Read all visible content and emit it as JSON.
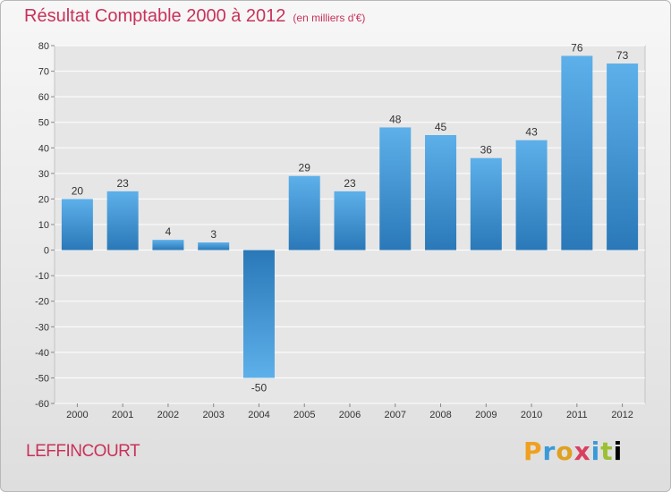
{
  "chart_data": {
    "type": "bar",
    "title": "Résultat Comptable 2000 à 2012",
    "subtitle": "(en milliers d'€)",
    "categories": [
      "2000",
      "2001",
      "2002",
      "2003",
      "2004",
      "2005",
      "2006",
      "2007",
      "2008",
      "2009",
      "2010",
      "2011",
      "2012"
    ],
    "values": [
      20,
      23,
      4,
      3,
      -50,
      29,
      23,
      48,
      45,
      36,
      43,
      76,
      73
    ],
    "ylim": [
      -60,
      80
    ],
    "yticks": [
      80,
      70,
      60,
      50,
      40,
      30,
      20,
      10,
      0,
      -10,
      -20,
      -30,
      -40,
      -50,
      -60
    ],
    "xlabel": "",
    "ylabel": "",
    "grid": true,
    "bar_color": "#3d8fd1"
  },
  "footer": {
    "place": "LEFFINCOURT",
    "logo_letters": [
      "P",
      "r",
      "o",
      "x",
      "i",
      "t",
      "i"
    ]
  }
}
